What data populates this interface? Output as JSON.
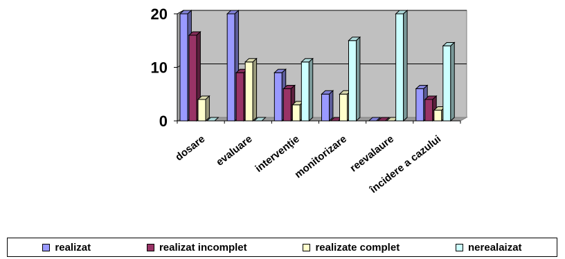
{
  "chart_data": {
    "type": "bar",
    "categories": [
      "dosare",
      "evaluare",
      "intervenţie",
      "monitorizare",
      "reevalaure",
      "încidere a cazului"
    ],
    "series": [
      {
        "name": "realizat",
        "values": [
          20,
          20,
          9,
          5,
          0,
          6
        ],
        "color": "#9999ff"
      },
      {
        "name": "realizat incomplet",
        "values": [
          16,
          9,
          6,
          0,
          0,
          4
        ],
        "color": "#993366"
      },
      {
        "name": "realizate complet",
        "values": [
          4,
          11,
          3,
          5,
          0,
          2
        ],
        "color": "#ffffcc"
      },
      {
        "name": "nerealaizat",
        "values": [
          0,
          0,
          11,
          15,
          20,
          14
        ],
        "color": "#ccffff"
      }
    ],
    "ylim": [
      0,
      20
    ],
    "yticks": [
      0,
      10,
      20
    ],
    "grid": true,
    "legend": "bottom",
    "wall_color": "#c0c0c0"
  }
}
